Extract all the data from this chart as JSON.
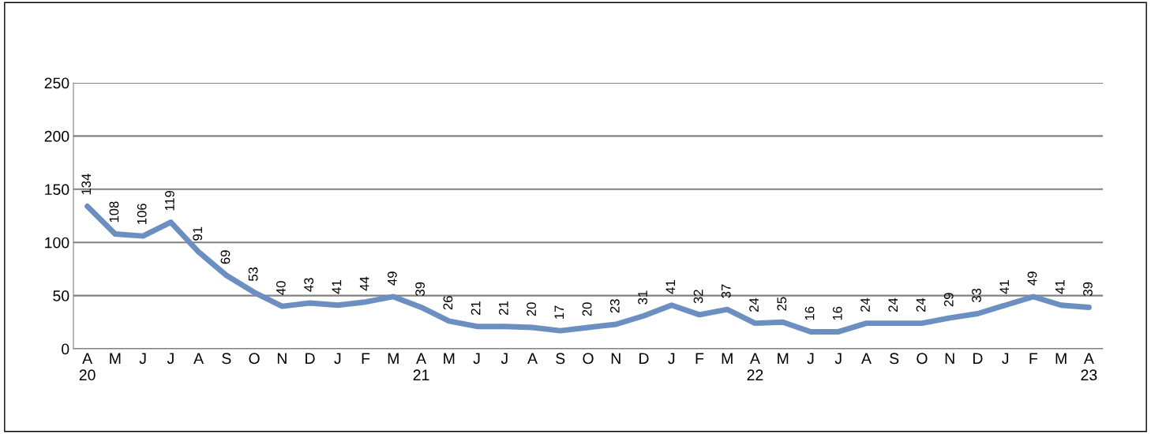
{
  "chart_data": {
    "type": "line",
    "categories": [
      "A\n20",
      "M",
      "J",
      "J",
      "A",
      "S",
      "O",
      "N",
      "D",
      "J",
      "F",
      "M",
      "A\n21",
      "M",
      "J",
      "J",
      "A",
      "S",
      "O",
      "N",
      "D",
      "J",
      "F",
      "M",
      "A\n22",
      "M",
      "J",
      "J",
      "A",
      "S",
      "O",
      "N",
      "D",
      "J",
      "F",
      "M",
      "A\n23"
    ],
    "series": [
      {
        "color": "#6b8fc1",
        "values": [
          134,
          108,
          106,
          119,
          91,
          69,
          53,
          40,
          43,
          41,
          44,
          49,
          39,
          26,
          21,
          21,
          20,
          17,
          20,
          23,
          31,
          41,
          32,
          37,
          24,
          25,
          16,
          16,
          24,
          24,
          24,
          29,
          33,
          41,
          49,
          41,
          39
        ]
      }
    ],
    "ylim": [
      0,
      250
    ],
    "yticks": [
      0,
      50,
      100,
      150,
      200,
      250
    ],
    "grid": "y",
    "data_labels": true,
    "legend": false,
    "marker": "none",
    "line_style": "solid"
  }
}
